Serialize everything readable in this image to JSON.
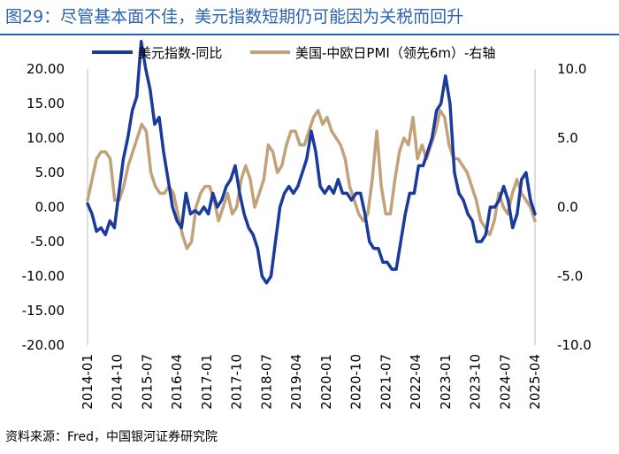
{
  "title": "图29：尽管基本面不佳，美元指数短期仍可能因为关税而回升",
  "source": "资料来源：Fred，中国银河证券研究院",
  "colors": {
    "series1": "#1a3a9c",
    "series2": "#c2a27a",
    "title": "#2a64b0"
  },
  "chart_data": {
    "type": "line",
    "title": "尽管基本面不佳，美元指数短期仍可能因为关税而回升",
    "legend_position": "top",
    "y_left": {
      "min": -20,
      "max": 20,
      "ticks": [
        "20.00",
        "15.00",
        "10.00",
        "5.00",
        "0.00",
        "-5.00",
        "-10.00",
        "-15.00",
        "-20.00"
      ]
    },
    "y_right": {
      "min": -10,
      "max": 10,
      "ticks": [
        "10.0",
        "5.0",
        "0.0",
        "-5.0",
        "-10.0"
      ]
    },
    "x_ticks": [
      "2014-01",
      "2014-10",
      "2015-07",
      "2016-04",
      "2017-01",
      "2017-10",
      "2018-07",
      "2019-04",
      "2020-01",
      "2020-10",
      "2021-07",
      "2022-04",
      "2023-01",
      "2023-10",
      "2024-07",
      "2025-04"
    ],
    "series": [
      {
        "name": "美元指数-同比",
        "axis": "left",
        "values": [
          0.5,
          -1,
          -3.5,
          -3,
          -4,
          -2,
          -3,
          2,
          7,
          10,
          14,
          16,
          24,
          20,
          17,
          12,
          13,
          8,
          4,
          0,
          -2,
          -3,
          2,
          -1,
          -0.5,
          -1,
          0,
          -1,
          2,
          0,
          1,
          3,
          4,
          6,
          2,
          -1,
          -3,
          -4,
          -6,
          -10,
          -11,
          -10,
          -5,
          0,
          2,
          3,
          2,
          3,
          5,
          7,
          11,
          8,
          3,
          2,
          3,
          2,
          4,
          2,
          2,
          1,
          2,
          2,
          -1,
          -5,
          -6,
          -6,
          -8,
          -8,
          -9,
          -9,
          -5,
          -1,
          2,
          2,
          6,
          6,
          8,
          10,
          14,
          15,
          19,
          15,
          5,
          2,
          1,
          -1,
          -2,
          -5,
          -5,
          -4,
          0,
          0,
          1,
          3,
          1,
          -3,
          -1,
          4,
          5,
          1,
          -1
        ]
      },
      {
        "name": "美国-中欧日PMI（领先6m）-右轴",
        "axis": "right",
        "values": [
          0.5,
          2,
          3.5,
          4,
          4,
          3.5,
          0.5,
          0.5,
          1.5,
          3,
          4,
          5,
          6,
          5.5,
          2.5,
          1.5,
          1,
          1,
          1.5,
          1,
          -0.5,
          -2,
          -3,
          -2.5,
          0,
          1,
          1.5,
          1.5,
          0.5,
          -1,
          0,
          1,
          -0.5,
          0,
          2,
          3,
          2,
          0,
          1,
          2,
          4.5,
          4,
          2.5,
          3,
          4.5,
          5.5,
          5.5,
          4.5,
          4.5,
          5.5,
          6.5,
          7,
          6,
          6.5,
          5.5,
          5,
          4.5,
          3.5,
          1.5,
          0.5,
          -0.5,
          -1,
          -0.5,
          2,
          5.5,
          1.5,
          -0.5,
          -0.5,
          2,
          4,
          5,
          4.5,
          6.5,
          3.5,
          4.5,
          3.5,
          4.5,
          5.5,
          7,
          6.5,
          4.5,
          3.5,
          3.5,
          3,
          2.5,
          1.5,
          0.5,
          -1,
          -1.5,
          -2,
          -1,
          1,
          0,
          -0.5,
          1,
          2,
          1,
          0.5,
          0,
          -1
        ]
      }
    ]
  }
}
